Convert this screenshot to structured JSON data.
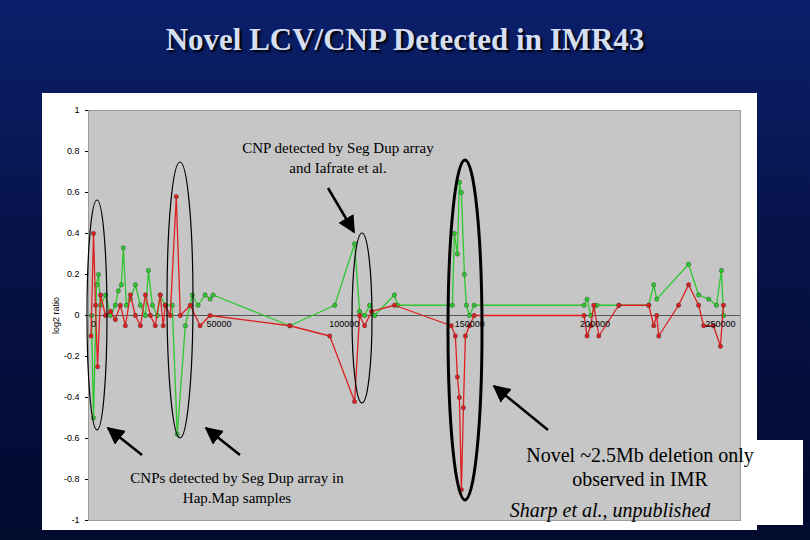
{
  "chart_data": {
    "type": "line",
    "title": "Novel LCV/CNP Detected in IMR43",
    "y_label": "log2 ratio",
    "xlim": [
      -2000,
      258000
    ],
    "xticks": [
      0,
      50000,
      100000,
      150000,
      200000,
      250000
    ],
    "ylim": [
      -1,
      1
    ],
    "yticks": [
      -1,
      -0.8,
      -0.6,
      -0.4,
      -0.2,
      0,
      0.2,
      0.4,
      0.6,
      0.8,
      1
    ],
    "grid": false,
    "marker": "circle",
    "line_style": "solid",
    "series": [
      {
        "color": "#2ec82e",
        "x": [
          -800,
          0,
          1200,
          2000,
          2800,
          4800,
          6800,
          8700,
          9900,
          11100,
          11900,
          13100,
          14700,
          16700,
          18700,
          20700,
          21900,
          23500,
          25400,
          26600,
          28600,
          31400,
          33400,
          36600,
          39400,
          41700,
          44500,
          46500,
          47700,
          78300,
          96200,
          104100,
          106100,
          108100,
          110100,
          112100,
          120000,
          121200,
          143100,
          143900,
          145100,
          145900,
          146700,
          147900,
          148700,
          149900,
          151800,
          195600,
          196800,
          198300,
          200700,
          209500,
          221400,
          223400,
          224600,
          237300,
          241300,
          245300,
          248400,
          250400,
          251200
        ],
        "values": [
          0.0,
          -0.5,
          0.15,
          0.2,
          0.05,
          0.1,
          0.0,
          0.05,
          0.12,
          0.15,
          0.33,
          0.05,
          0.08,
          0.15,
          0.05,
          0.0,
          0.22,
          0.05,
          0.0,
          0.1,
          0.05,
          0.05,
          -0.58,
          -0.05,
          0.1,
          0.05,
          0.1,
          0.08,
          0.1,
          -0.05,
          0.05,
          0.35,
          0.02,
          0.0,
          0.05,
          0.0,
          0.1,
          0.05,
          0.05,
          0.4,
          0.3,
          0.65,
          0.6,
          0.2,
          0.05,
          0.0,
          0.05,
          0.05,
          0.08,
          0.0,
          0.05,
          0.05,
          0.05,
          0.15,
          0.08,
          0.25,
          0.1,
          0.08,
          0.05,
          0.22,
          0.0
        ]
      },
      {
        "color": "#dd1f1f",
        "x": [
          -1000,
          0,
          800,
          1600,
          2800,
          4800,
          6800,
          8700,
          10700,
          12700,
          14700,
          16700,
          18700,
          20700,
          22700,
          24600,
          26600,
          27800,
          28600,
          30600,
          33000,
          34600,
          38600,
          42500,
          46500,
          78300,
          94200,
          104100,
          106100,
          108100,
          110900,
          120000,
          142700,
          144300,
          145100,
          145900,
          146700,
          147500,
          148300,
          149900,
          151800,
          195600,
          196800,
          198300,
          199500,
          201500,
          209500,
          221400,
          223400,
          224600,
          225400,
          233300,
          237300,
          241300,
          243300,
          247200,
          250000,
          251200
        ],
        "values": [
          -0.1,
          0.4,
          0.05,
          -0.25,
          0.1,
          0.0,
          0.02,
          -0.02,
          0.05,
          -0.05,
          0.1,
          0.0,
          -0.05,
          0.1,
          0.0,
          -0.05,
          0.1,
          -0.05,
          0.05,
          0.0,
          0.58,
          0.0,
          0.05,
          -0.05,
          0.0,
          -0.05,
          -0.1,
          -0.42,
          0.0,
          -0.05,
          0.02,
          0.05,
          -0.05,
          -0.1,
          -0.3,
          -0.4,
          -0.85,
          -0.45,
          -0.1,
          -0.05,
          0.0,
          0.0,
          -0.1,
          -0.05,
          0.05,
          -0.1,
          0.05,
          0.05,
          -0.05,
          0.0,
          -0.1,
          0.05,
          0.15,
          0.05,
          -0.05,
          -0.05,
          -0.15,
          0.05
        ]
      }
    ],
    "annotations": [
      {
        "lines": [
          "CNP detected by Seg Dup array",
          "and Iafrate et al."
        ]
      },
      {
        "lines": [
          "CNPs detected by Seg Dup array in",
          "Hap.Map samples"
        ]
      },
      {
        "lines": [
          "Novel ~2.5Mb deletion only",
          "observed in IMR"
        ]
      },
      {
        "lines": [
          "Sharp et al., unpublished"
        ]
      }
    ]
  }
}
